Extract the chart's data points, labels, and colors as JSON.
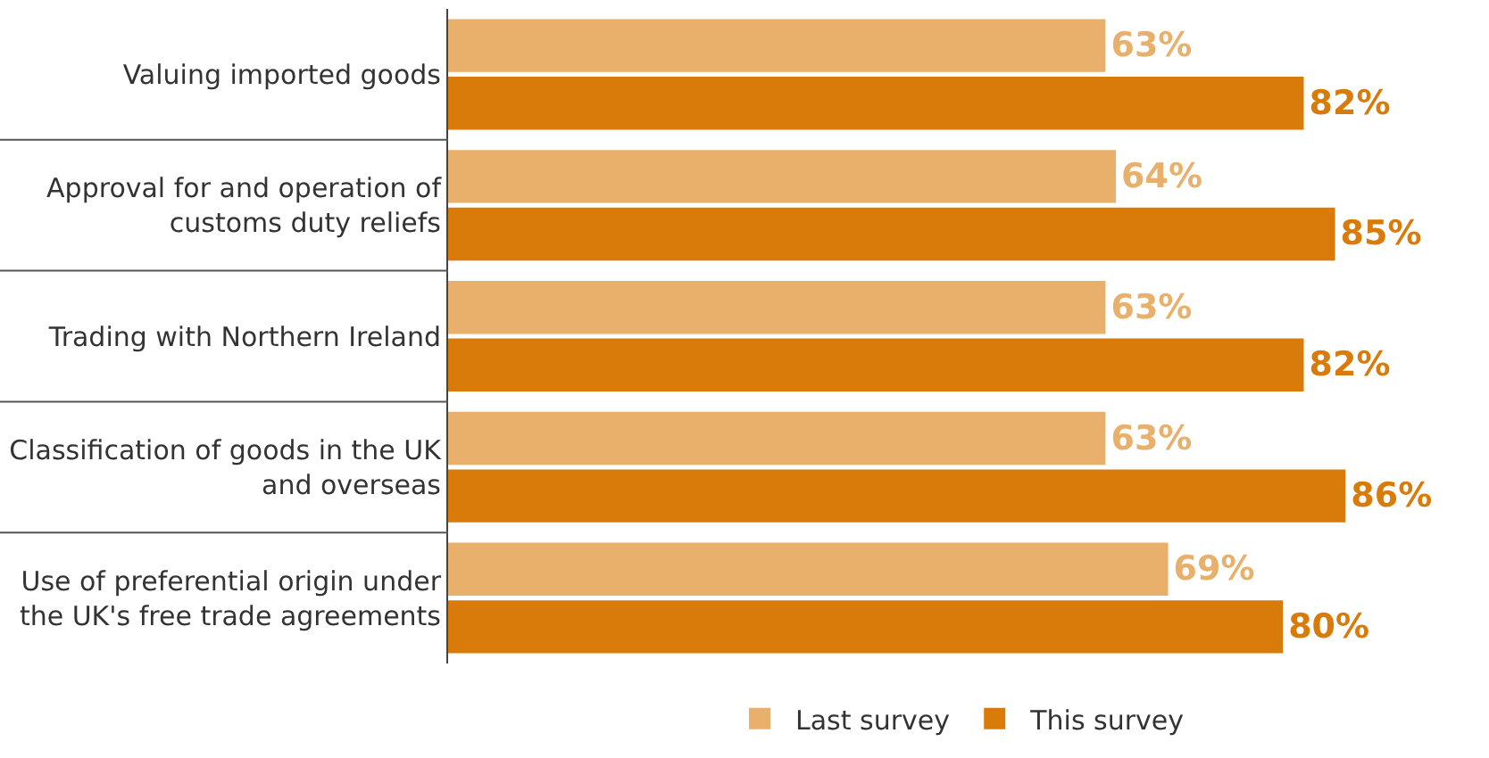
{
  "chart_data": {
    "type": "bar",
    "orientation": "horizontal",
    "categories": [
      "Valuing imported goods",
      "Approval for and operation of customs duty reliefs",
      "Trading with Northern Ireland",
      "Classification of goods in the UK and overseas",
      "Use of preferential origin under the UK's free trade agreements"
    ],
    "series": [
      {
        "name": "Last survey",
        "color": "#e8b06a",
        "values": [
          63,
          64,
          63,
          63,
          69
        ],
        "value_labels": [
          "63%",
          "64%",
          "63%",
          "63%",
          "69%"
        ]
      },
      {
        "name": "This survey",
        "color": "#d97b0a",
        "values": [
          82,
          85,
          82,
          86,
          80
        ],
        "value_labels": [
          "82%",
          "85%",
          "82%",
          "86%",
          "80%"
        ]
      }
    ],
    "legend": "bottom"
  }
}
